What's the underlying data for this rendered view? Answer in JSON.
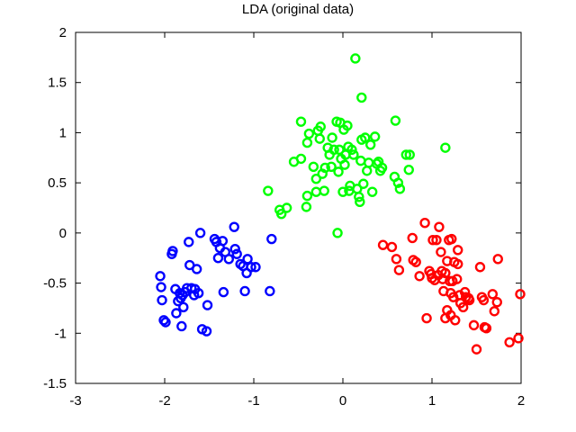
{
  "chart_data": {
    "type": "scatter",
    "title": "LDA (original data)",
    "xlabel": "",
    "ylabel": "",
    "xlim": [
      -3,
      2
    ],
    "ylim": [
      -1.5,
      2
    ],
    "grid": false,
    "legend": "none",
    "x_ticks": [
      "-3",
      "-2",
      "-1",
      "0",
      "1",
      "2"
    ],
    "y_ticks": [
      "-1.5",
      "-1",
      "-0.5",
      "0",
      "0.5",
      "1",
      "1.5",
      "2"
    ],
    "series": [
      {
        "color": "#0000ff",
        "marker": "circle-open",
        "points": [
          [
            -2.05,
            -0.43
          ],
          [
            -2.04,
            -0.54
          ],
          [
            -2.03,
            -0.67
          ],
          [
            -2.01,
            -0.87
          ],
          [
            -1.99,
            -0.89
          ],
          [
            -1.92,
            -0.21
          ],
          [
            -1.91,
            -0.18
          ],
          [
            -1.88,
            -0.56
          ],
          [
            -1.87,
            -0.8
          ],
          [
            -1.85,
            -0.68
          ],
          [
            -1.83,
            -0.6
          ],
          [
            -1.82,
            -0.65
          ],
          [
            -1.81,
            -0.93
          ],
          [
            -1.8,
            -0.62
          ],
          [
            -1.79,
            -0.74
          ],
          [
            -1.77,
            -0.59
          ],
          [
            -1.75,
            -0.55
          ],
          [
            -1.73,
            -0.09
          ],
          [
            -1.72,
            -0.32
          ],
          [
            -1.7,
            -0.55
          ],
          [
            -1.67,
            -0.62
          ],
          [
            -1.66,
            -0.56
          ],
          [
            -1.64,
            -0.36
          ],
          [
            -1.62,
            -0.6
          ],
          [
            -1.6,
            0.0
          ],
          [
            -1.58,
            -0.96
          ],
          [
            -1.53,
            -0.98
          ],
          [
            -1.52,
            -0.72
          ],
          [
            -1.44,
            -0.06
          ],
          [
            -1.42,
            -0.09
          ],
          [
            -1.4,
            -0.25
          ],
          [
            -1.38,
            -0.15
          ],
          [
            -1.35,
            -0.08
          ],
          [
            -1.34,
            -0.59
          ],
          [
            -1.32,
            -0.19
          ],
          [
            -1.28,
            -0.26
          ],
          [
            -1.22,
            0.06
          ],
          [
            -1.21,
            -0.16
          ],
          [
            -1.19,
            -0.21
          ],
          [
            -1.15,
            -0.31
          ],
          [
            -1.12,
            -0.33
          ],
          [
            -1.1,
            -0.58
          ],
          [
            -1.08,
            -0.4
          ],
          [
            -1.07,
            -0.26
          ],
          [
            -1.03,
            -0.34
          ],
          [
            -0.98,
            -0.34
          ],
          [
            -0.82,
            -0.58
          ],
          [
            -0.8,
            -0.06
          ]
        ]
      },
      {
        "color": "#00ff00",
        "marker": "circle-open",
        "points": [
          [
            -0.84,
            0.42
          ],
          [
            -0.71,
            0.23
          ],
          [
            -0.69,
            0.19
          ],
          [
            -0.63,
            0.25
          ],
          [
            -0.55,
            0.71
          ],
          [
            -0.47,
            0.74
          ],
          [
            -0.47,
            1.11
          ],
          [
            -0.41,
            0.26
          ],
          [
            -0.4,
            0.37
          ],
          [
            -0.4,
            0.9
          ],
          [
            -0.38,
            0.99
          ],
          [
            -0.33,
            0.66
          ],
          [
            -0.3,
            0.41
          ],
          [
            -0.3,
            0.54
          ],
          [
            -0.28,
            1.02
          ],
          [
            -0.26,
            0.94
          ],
          [
            -0.25,
            1.06
          ],
          [
            -0.23,
            0.59
          ],
          [
            -0.21,
            0.42
          ],
          [
            -0.2,
            0.65
          ],
          [
            -0.17,
            0.85
          ],
          [
            -0.15,
            0.78
          ],
          [
            -0.13,
            0.66
          ],
          [
            -0.12,
            0.95
          ],
          [
            -0.1,
            0.83
          ],
          [
            -0.07,
            1.11
          ],
          [
            -0.06,
            0.0
          ],
          [
            -0.05,
            0.61
          ],
          [
            -0.04,
            0.83
          ],
          [
            -0.03,
            1.1
          ],
          [
            -0.02,
            0.74
          ],
          [
            0.0,
            0.41
          ],
          [
            0.01,
            1.03
          ],
          [
            0.02,
            0.68
          ],
          [
            0.03,
            0.78
          ],
          [
            0.05,
            1.07
          ],
          [
            0.06,
            0.86
          ],
          [
            0.07,
            0.42
          ],
          [
            0.08,
            0.47
          ],
          [
            0.1,
            0.83
          ],
          [
            0.12,
            0.78
          ],
          [
            0.14,
            1.74
          ],
          [
            0.16,
            0.44
          ],
          [
            0.18,
            0.36
          ],
          [
            0.19,
            0.31
          ],
          [
            0.2,
            0.72
          ],
          [
            0.21,
            0.93
          ],
          [
            0.21,
            1.35
          ],
          [
            0.23,
            0.49
          ],
          [
            0.25,
            0.95
          ],
          [
            0.27,
            0.62
          ],
          [
            0.29,
            0.7
          ],
          [
            0.31,
            0.88
          ],
          [
            0.33,
            0.41
          ],
          [
            0.36,
            0.96
          ],
          [
            0.38,
            0.69
          ],
          [
            0.4,
            0.71
          ],
          [
            0.42,
            0.62
          ],
          [
            0.44,
            0.65
          ],
          [
            0.58,
            0.56
          ],
          [
            0.59,
            1.12
          ],
          [
            0.62,
            0.5
          ],
          [
            0.64,
            0.44
          ],
          [
            0.71,
            0.78
          ],
          [
            0.74,
            0.63
          ],
          [
            0.75,
            0.78
          ],
          [
            1.15,
            0.85
          ]
        ]
      },
      {
        "color": "#ff0000",
        "marker": "circle-open",
        "points": [
          [
            0.45,
            -0.12
          ],
          [
            0.55,
            -0.14
          ],
          [
            0.6,
            -0.26
          ],
          [
            0.63,
            -0.37
          ],
          [
            0.78,
            -0.05
          ],
          [
            0.79,
            -0.27
          ],
          [
            0.82,
            -0.29
          ],
          [
            0.86,
            -0.43
          ],
          [
            0.92,
            0.1
          ],
          [
            0.94,
            -0.85
          ],
          [
            0.97,
            -0.38
          ],
          [
            0.99,
            -0.41
          ],
          [
            1.0,
            -0.45
          ],
          [
            1.01,
            -0.07
          ],
          [
            1.03,
            -0.47
          ],
          [
            1.05,
            -0.07
          ],
          [
            1.07,
            -0.42
          ],
          [
            1.08,
            0.06
          ],
          [
            1.1,
            -0.19
          ],
          [
            1.11,
            -0.38
          ],
          [
            1.12,
            -0.46
          ],
          [
            1.13,
            -0.58
          ],
          [
            1.15,
            -0.85
          ],
          [
            1.15,
            -0.4
          ],
          [
            1.17,
            -0.28
          ],
          [
            1.17,
            -0.77
          ],
          [
            1.19,
            -0.07
          ],
          [
            1.2,
            -0.48
          ],
          [
            1.21,
            -0.6
          ],
          [
            1.21,
            -0.82
          ],
          [
            1.22,
            -0.06
          ],
          [
            1.23,
            -0.48
          ],
          [
            1.24,
            -0.64
          ],
          [
            1.25,
            -0.29
          ],
          [
            1.26,
            -0.87
          ],
          [
            1.28,
            -0.46
          ],
          [
            1.29,
            -0.31
          ],
          [
            1.29,
            -0.17
          ],
          [
            1.31,
            -0.62
          ],
          [
            1.32,
            -0.7
          ],
          [
            1.35,
            -0.74
          ],
          [
            1.37,
            -0.59
          ],
          [
            1.38,
            -0.64
          ],
          [
            1.41,
            -0.65
          ],
          [
            1.42,
            -0.67
          ],
          [
            1.47,
            -0.92
          ],
          [
            1.5,
            -1.16
          ],
          [
            1.54,
            -0.34
          ],
          [
            1.56,
            -0.64
          ],
          [
            1.58,
            -0.67
          ],
          [
            1.59,
            -0.94
          ],
          [
            1.61,
            -0.95
          ],
          [
            1.68,
            -0.61
          ],
          [
            1.7,
            -0.78
          ],
          [
            1.73,
            -0.69
          ],
          [
            1.74,
            -0.26
          ],
          [
            1.87,
            -1.09
          ],
          [
            1.97,
            -1.05
          ],
          [
            1.99,
            -0.61
          ]
        ]
      }
    ]
  }
}
